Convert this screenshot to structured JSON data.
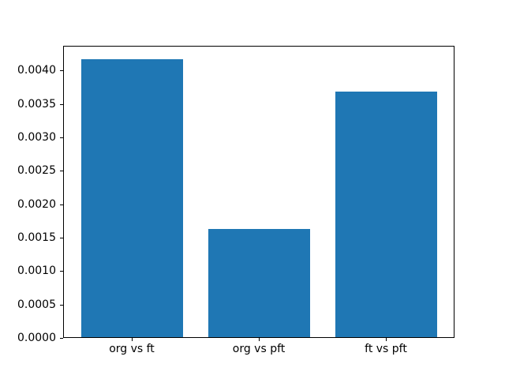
{
  "figure": {
    "background": "#ffffff",
    "title": ""
  },
  "chart_data": {
    "type": "bar",
    "title": "",
    "categories": [
      "org vs ft",
      "org vs pft",
      "ft vs pft"
    ],
    "x": [
      0,
      1,
      2
    ],
    "values": [
      0.00417,
      0.00163,
      0.00369
    ],
    "bar_width": 0.8,
    "bar_color": "#1f77b4",
    "axis_color": "#000000",
    "text_color": "#000000",
    "xlabel": "",
    "ylabel": "",
    "xlim": [
      -0.54,
      2.54
    ],
    "ylim": [
      0,
      0.00437
    ],
    "yticks": [
      0.0,
      0.0005,
      0.001,
      0.0015,
      0.002,
      0.0025,
      0.003,
      0.0035,
      0.004
    ],
    "ytick_labels": [
      "0.0000",
      "0.0005",
      "0.0010",
      "0.0015",
      "0.0020",
      "0.0025",
      "0.0030",
      "0.0035",
      "0.0040"
    ],
    "grid": false,
    "legend": "none"
  }
}
